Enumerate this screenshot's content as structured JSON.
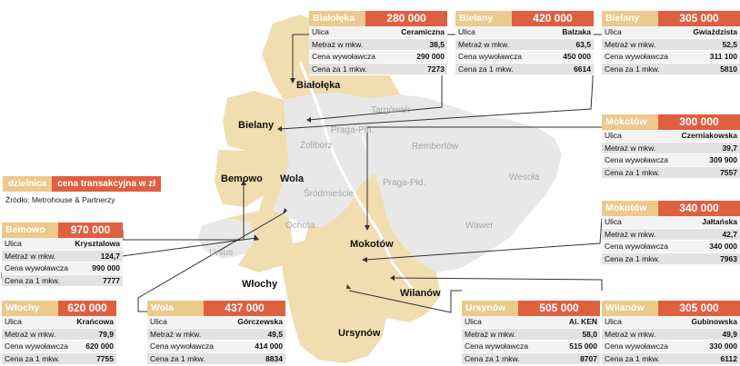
{
  "legend": {
    "district_label": "dzielnica",
    "price_label": "cena transakcyjna w zł",
    "source": "Źródło: Metrohouse & Partnerzy"
  },
  "map_labels": {
    "bialoleka": "Białołęka",
    "bielany": "Bielany",
    "bemowo": "Bemowo",
    "wola": "Wola",
    "wlochy": "Włochy",
    "mokotow": "Mokotów",
    "wilanow": "Wilanów",
    "ursynow": "Ursynów",
    "targowek": "Targówek",
    "praga_pln": "Praga-Pln.",
    "zoliborz": "Żoliborz",
    "rembertow": "Rembertów",
    "srodmiescie": "Śródmieście",
    "praga_pld": "Praga-Płd.",
    "wesola": "Wesoła",
    "ochota": "Ochota",
    "wawer": "Wawer",
    "ursus": "Ursus"
  },
  "colors": {
    "district_fill": "#f0ddb0",
    "gray_fill": "#e8e8e8",
    "header_district": "#ecc98c",
    "header_price": "#df5f41",
    "leader_line": "#333333"
  },
  "row_labels": {
    "street": "Ulica",
    "area": "Metraż w mkw.",
    "asking": "Cena wywoławcza",
    "sqm": "Cena za 1 mkw."
  },
  "cards": [
    {
      "id": "bialoleka",
      "district": "Białołęka",
      "price": "280 000",
      "street": "Ceramiczna",
      "area": "38,5",
      "asking": "290 000",
      "sqm": "7273"
    },
    {
      "id": "bielany1",
      "district": "Bielany",
      "price": "420 000",
      "street": "Balzaka",
      "area": "63,5",
      "asking": "450 000",
      "sqm": "6614"
    },
    {
      "id": "bielany2",
      "district": "Bielany",
      "price": "305 000",
      "street": "Gwiaździsta",
      "area": "52,5",
      "asking": "311 100",
      "sqm": "5810"
    },
    {
      "id": "mokotow1",
      "district": "Mokotów",
      "price": "300 000",
      "street": "Czerniakowska",
      "area": "39,7",
      "asking": "309 900",
      "sqm": "7557"
    },
    {
      "id": "mokotow2",
      "district": "Mokotów",
      "price": "340 000",
      "street": "Jałtańska",
      "area": "42,7",
      "asking": "340 000",
      "sqm": "7963"
    },
    {
      "id": "wilanow",
      "district": "Wilanów",
      "price": "305 000",
      "street": "Gubinowska",
      "area": "49,9",
      "asking": "330 000",
      "sqm": "6112"
    },
    {
      "id": "ursynow",
      "district": "Ursynów",
      "price": "505 000",
      "street": "Al. KEN",
      "area": "58,0",
      "asking": "515 000",
      "sqm": "8707"
    },
    {
      "id": "wola",
      "district": "Wola",
      "price": "437 000",
      "street": "Górczewska",
      "area": "49,5",
      "asking": "414 000",
      "sqm": "8834"
    },
    {
      "id": "wlochy",
      "district": "Włochy",
      "price": "620 000",
      "street": "Krańcowa",
      "area": "79,9",
      "asking": "620 000",
      "sqm": "7755"
    },
    {
      "id": "bemowo",
      "district": "Bemowo",
      "price": "970 000",
      "street": "Krysztalowa",
      "area": "124,7",
      "asking": "990 000",
      "sqm": "7777"
    }
  ]
}
